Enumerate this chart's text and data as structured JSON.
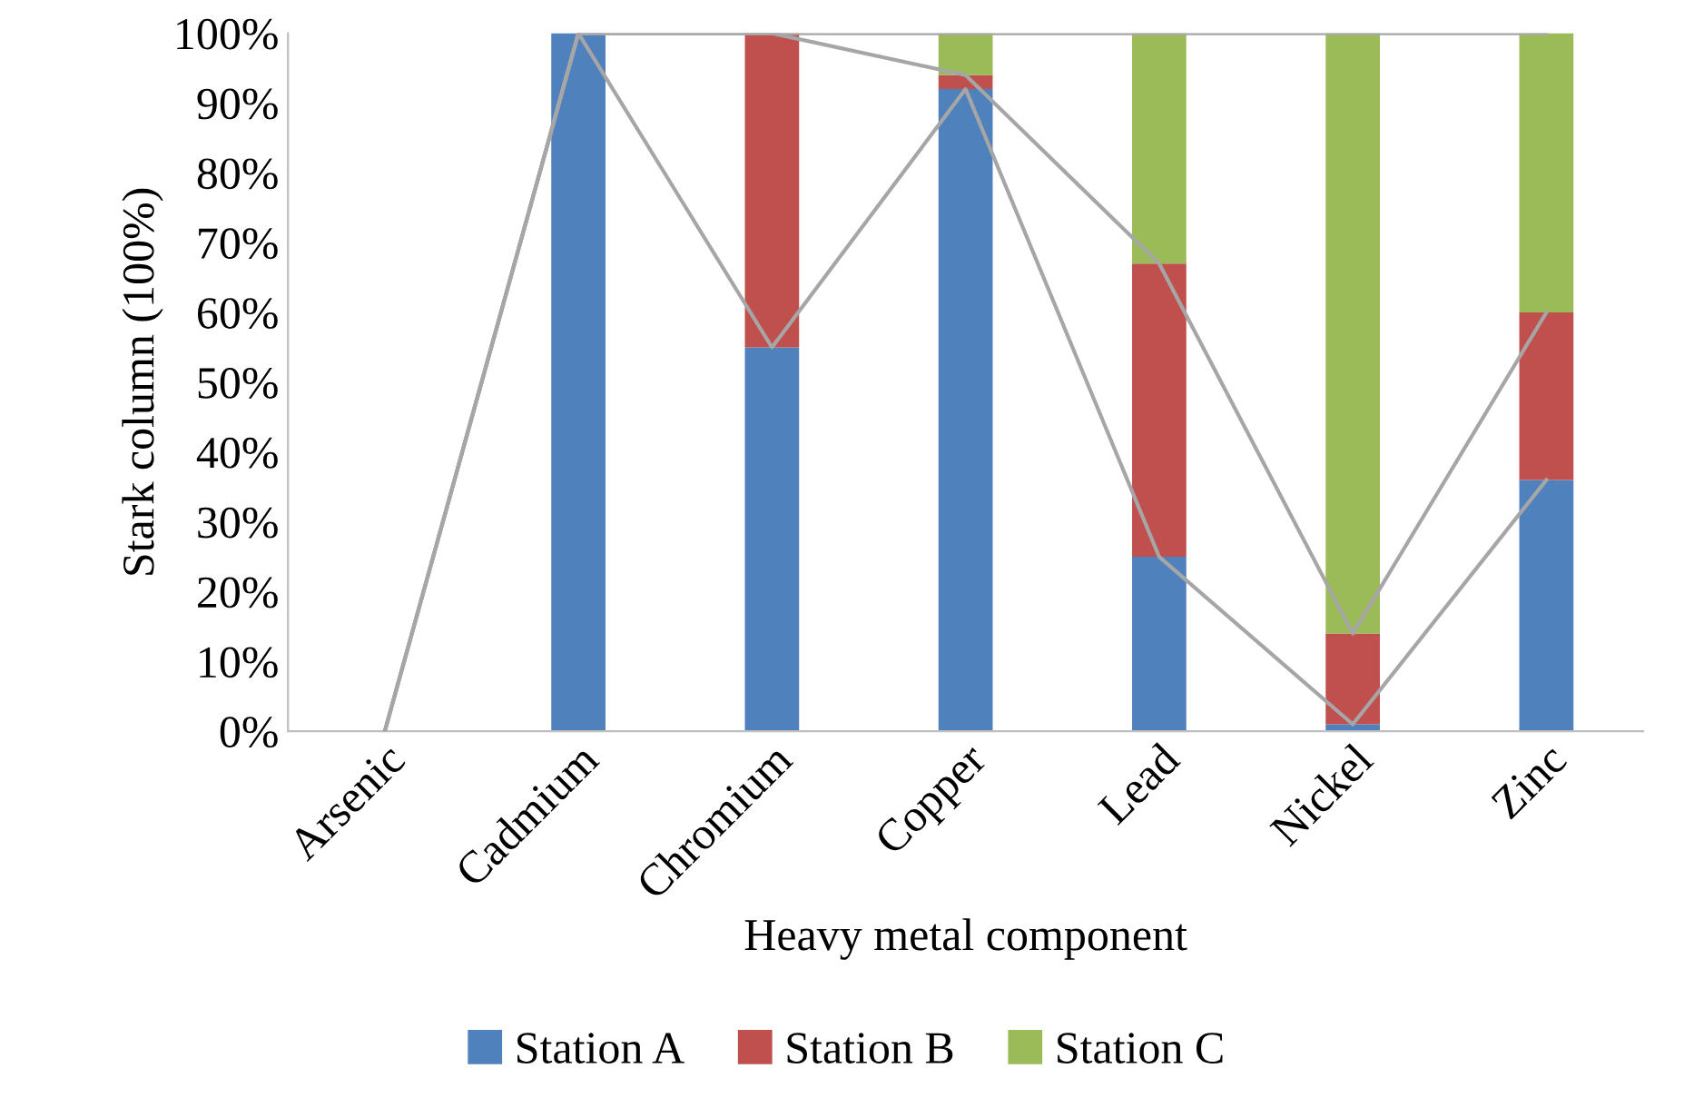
{
  "chart_data": {
    "type": "bar",
    "stacked": true,
    "xlabel": "Heavy metal component",
    "ylabel": "Stark column (100%)",
    "categories": [
      "Arsenic",
      "Cadmium",
      "Chromium",
      "Copper",
      "Lead",
      "Nickel",
      "Zinc"
    ],
    "series": [
      {
        "name": "Station A",
        "color": "#4f81bd",
        "values": [
          0,
          100,
          55,
          92,
          25,
          1,
          36
        ]
      },
      {
        "name": "Station B",
        "color": "#c0504d",
        "values": [
          0,
          0,
          45,
          2,
          42,
          13,
          24
        ]
      },
      {
        "name": "Station C",
        "color": "#9bbb59",
        "values": [
          0,
          0,
          0,
          6,
          33,
          86,
          40
        ]
      },
      {
        "type": "line",
        "color": "#a6a6a6",
        "values": [
          0,
          100,
          55,
          92,
          25,
          1,
          36
        ]
      },
      {
        "type": "line",
        "color": "#a6a6a6",
        "values": [
          0,
          100,
          100,
          94,
          67,
          14,
          60
        ]
      },
      {
        "type": "line",
        "color": "#a6a6a6",
        "values": [
          0,
          100,
          100,
          100,
          100,
          100,
          100
        ]
      }
    ],
    "ylim": [
      0,
      100
    ],
    "yticks": [
      {
        "value": 0,
        "label": "0%"
      },
      {
        "value": 10,
        "label": "10%"
      },
      {
        "value": 20,
        "label": "20%"
      },
      {
        "value": 30,
        "label": "30%"
      },
      {
        "value": 40,
        "label": "40%"
      },
      {
        "value": 50,
        "label": "50%"
      },
      {
        "value": 60,
        "label": "60%"
      },
      {
        "value": 70,
        "label": "70%"
      },
      {
        "value": 80,
        "label": "80%"
      },
      {
        "value": 90,
        "label": "90%"
      },
      {
        "value": 100,
        "label": "100%"
      }
    ],
    "grid": false,
    "legend": "bottom"
  }
}
